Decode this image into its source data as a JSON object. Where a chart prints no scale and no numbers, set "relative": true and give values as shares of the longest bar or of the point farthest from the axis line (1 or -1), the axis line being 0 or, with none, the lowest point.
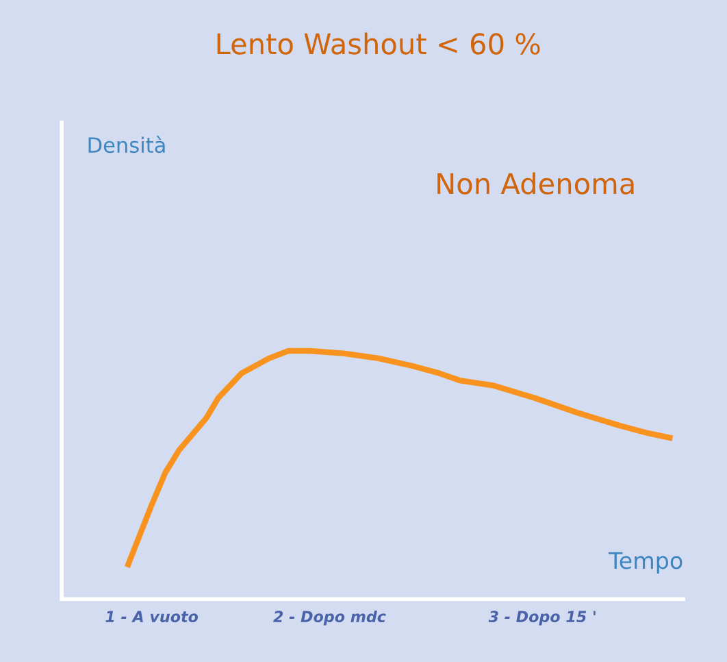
{
  "chart_data": {
    "type": "line",
    "title": "Lento Washout < 60 %",
    "xlabel": "Tempo",
    "relative": true,
    "annotations": [
      "Non Adenoma",
      "Densità"
    ],
    "xlim": [
      0.54,
      3.72
    ],
    "xticks": [
      {
        "value": 1,
        "label": "1 - A vuoto"
      },
      {
        "value": 1.91,
        "label": "2 - Dopo mdc"
      },
      {
        "value": 3,
        "label": "3 - Dopo 15 '"
      }
    ],
    "series": [
      {
        "color": "#f7931e",
        "x": [
          0.88,
          0.93,
          1.0,
          1.07,
          1.14,
          1.28,
          1.34,
          1.46,
          1.6,
          1.7,
          1.81,
          1.98,
          2.16,
          2.33,
          2.47,
          2.58,
          2.75,
          2.96,
          3.18,
          3.39,
          3.53,
          3.65
        ],
        "values": [
          0.14,
          0.24,
          0.38,
          0.51,
          0.6,
          0.73,
          0.81,
          0.91,
          0.97,
          1,
          1,
          0.99,
          0.97,
          0.94,
          0.91,
          0.88,
          0.86,
          0.81,
          0.75,
          0.7,
          0.67,
          0.65
        ]
      }
    ],
    "grid": false,
    "legend": false,
    "marker": "none",
    "line_style": "solid"
  }
}
